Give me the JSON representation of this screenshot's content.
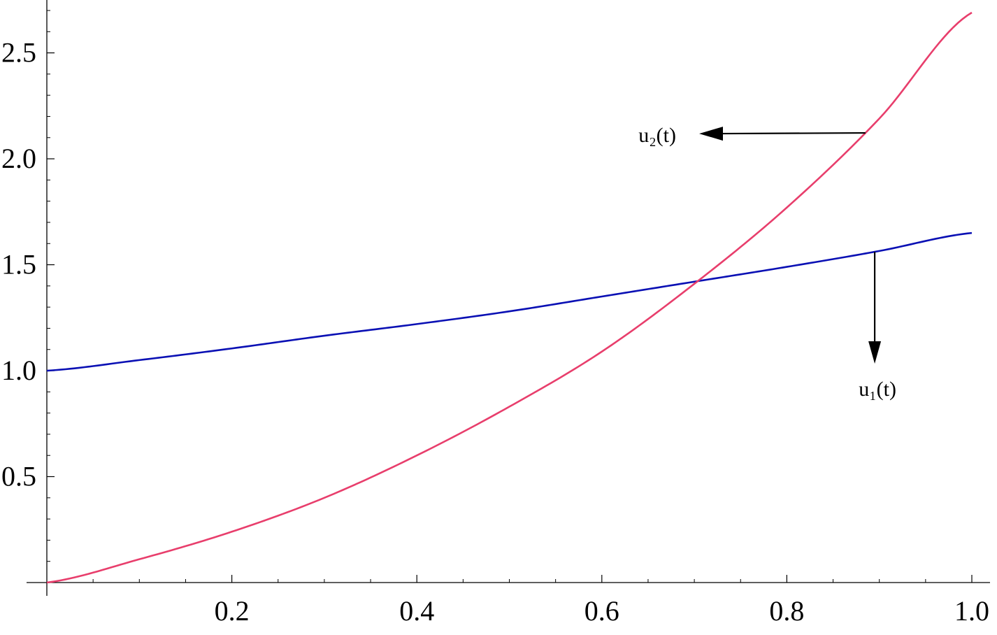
{
  "chart_data": {
    "type": "line",
    "title": "",
    "xlabel": "",
    "ylabel": "",
    "xlim": [
      0,
      1.0
    ],
    "ylim": [
      0,
      2.7
    ],
    "grid": false,
    "x_ticks": [
      0.2,
      0.4,
      0.6,
      0.8,
      1.0
    ],
    "x_tick_labels": [
      "0.2",
      "0.4",
      "0.6",
      "0.8",
      "1.0"
    ],
    "y_ticks": [
      0.5,
      1.0,
      1.5,
      2.0,
      2.5
    ],
    "y_tick_labels": [
      "0.5",
      "1.0",
      "1.5",
      "2.0",
      "2.5"
    ],
    "x": [
      0,
      0.1,
      0.2,
      0.3,
      0.4,
      0.5,
      0.6,
      0.7,
      0.8,
      0.9,
      1.0
    ],
    "series": [
      {
        "name": "u₁(t)",
        "color": "#0a10b4",
        "values": [
          1.0,
          1.05,
          1.105,
          1.165,
          1.22,
          1.28,
          1.35,
          1.42,
          1.49,
          1.565,
          1.65
        ]
      },
      {
        "name": "u₂(t)",
        "color": "#e83e6c",
        "values": [
          0.0,
          0.11,
          0.24,
          0.4,
          0.6,
          0.83,
          1.09,
          1.41,
          1.77,
          2.19,
          2.69
        ]
      }
    ],
    "annotations": [
      {
        "text": "u₂(t)",
        "series": 1,
        "anchor_x": 0.885,
        "direction": "left"
      },
      {
        "text": "u₁(t)",
        "series": 0,
        "anchor_x": 0.895,
        "direction": "down"
      }
    ]
  }
}
